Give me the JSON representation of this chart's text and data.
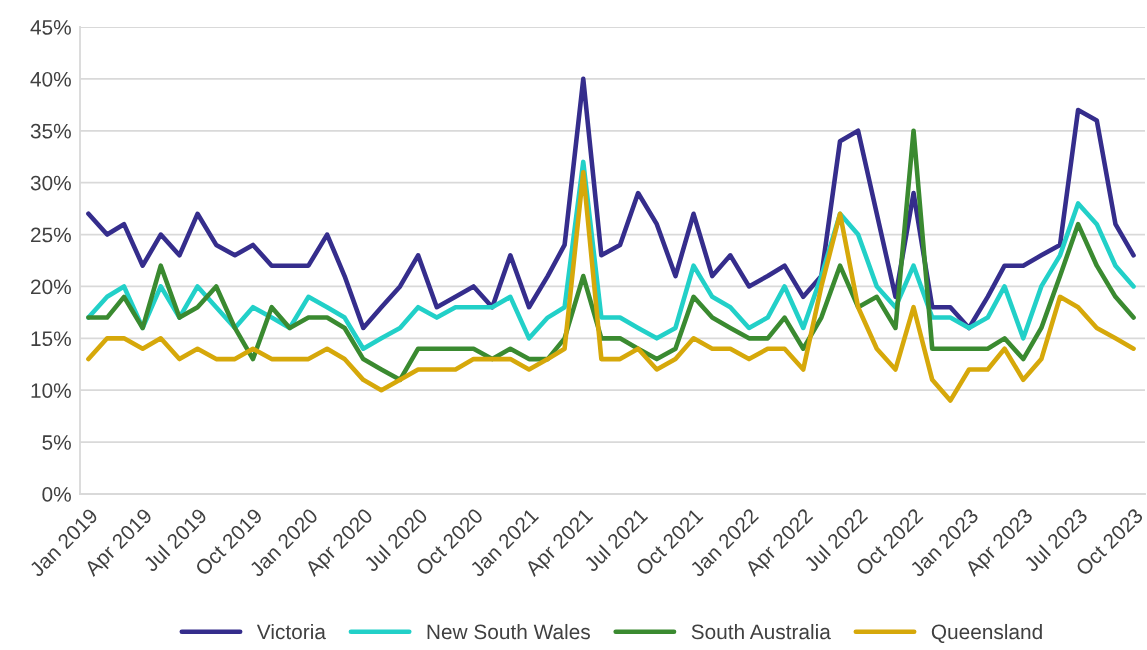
{
  "chart_data": {
    "type": "line",
    "x": [
      "2019-01",
      "2019-02",
      "2019-03",
      "2019-04",
      "2019-05",
      "2019-06",
      "2019-07",
      "2019-08",
      "2019-09",
      "2019-10",
      "2019-11",
      "2019-12",
      "2020-01",
      "2020-02",
      "2020-03",
      "2020-04",
      "2020-05",
      "2020-06",
      "2020-07",
      "2020-08",
      "2020-09",
      "2020-10",
      "2020-11",
      "2020-12",
      "2021-01",
      "2021-02",
      "2021-03",
      "2021-04",
      "2021-05",
      "2021-06",
      "2021-07",
      "2021-08",
      "2021-09",
      "2021-10",
      "2021-11",
      "2021-12",
      "2022-01",
      "2022-02",
      "2022-03",
      "2022-04",
      "2022-05",
      "2022-06",
      "2022-07",
      "2022-08",
      "2022-09",
      "2022-10",
      "2022-11",
      "2022-12",
      "2023-01",
      "2023-02",
      "2023-03",
      "2023-04",
      "2023-05",
      "2023-06",
      "2023-07",
      "2023-08",
      "2023-09",
      "2023-10"
    ],
    "series": [
      {
        "name": "Victoria",
        "color": "#352d8c",
        "values": [
          27,
          25,
          26,
          22,
          25,
          23,
          27,
          24,
          23,
          24,
          22,
          22,
          22,
          25,
          21,
          16,
          18,
          20,
          23,
          18,
          19,
          20,
          18,
          23,
          18,
          21,
          24,
          40,
          23,
          24,
          29,
          26,
          21,
          27,
          21,
          23,
          20,
          21,
          22,
          19,
          21,
          34,
          35,
          27,
          19,
          29,
          18,
          18,
          16,
          19,
          22,
          22,
          23,
          24,
          37,
          36,
          26,
          23
        ]
      },
      {
        "name": "New South Wales",
        "color": "#22d0c8",
        "values": [
          17,
          19,
          20,
          16,
          20,
          17,
          20,
          18,
          16,
          18,
          17,
          16,
          19,
          18,
          17,
          14,
          15,
          16,
          18,
          17,
          18,
          18,
          18,
          19,
          15,
          17,
          18,
          32,
          17,
          17,
          16,
          15,
          16,
          22,
          19,
          18,
          16,
          17,
          20,
          16,
          21,
          27,
          25,
          20,
          18,
          22,
          17,
          17,
          16,
          17,
          20,
          15,
          20,
          23,
          28,
          26,
          22,
          20
        ]
      },
      {
        "name": "South Australia",
        "color": "#3a8a30",
        "values": [
          17,
          17,
          19,
          16,
          22,
          17,
          18,
          20,
          16,
          13,
          18,
          16,
          17,
          17,
          16,
          13,
          12,
          11,
          14,
          14,
          14,
          14,
          13,
          14,
          13,
          13,
          15,
          21,
          15,
          15,
          14,
          13,
          14,
          19,
          17,
          16,
          15,
          15,
          17,
          14,
          17,
          22,
          18,
          19,
          16,
          35,
          14,
          14,
          14,
          14,
          15,
          13,
          16,
          21,
          26,
          22,
          19,
          17
        ]
      },
      {
        "name": "Queensland",
        "color": "#d6a80a",
        "values": [
          13,
          15,
          15,
          14,
          15,
          13,
          14,
          13,
          13,
          14,
          13,
          13,
          13,
          14,
          13,
          11,
          10,
          11,
          12,
          12,
          12,
          13,
          13,
          13,
          12,
          13,
          14,
          31,
          13,
          13,
          14,
          12,
          13,
          15,
          14,
          14,
          13,
          14,
          14,
          12,
          20,
          27,
          18,
          14,
          12,
          18,
          11,
          9,
          12,
          12,
          14,
          11,
          13,
          19,
          18,
          16,
          15,
          14
        ]
      }
    ],
    "xlim": [
      "2018-12-18",
      "2023-10-20"
    ],
    "xticks": [
      {
        "value": "2019-01",
        "label": "Jan 2019"
      },
      {
        "value": "2019-04",
        "label": "Apr 2019"
      },
      {
        "value": "2019-07",
        "label": "Jul 2019"
      },
      {
        "value": "2019-10",
        "label": "Oct 2019"
      },
      {
        "value": "2020-01",
        "label": "Jan 2020"
      },
      {
        "value": "2020-04",
        "label": "Apr 2020"
      },
      {
        "value": "2020-07",
        "label": "Jul 2020"
      },
      {
        "value": "2020-10",
        "label": "Oct 2020"
      },
      {
        "value": "2021-01",
        "label": "Jan 2021"
      },
      {
        "value": "2021-04",
        "label": "Apr 2021"
      },
      {
        "value": "2021-07",
        "label": "Jul 2021"
      },
      {
        "value": "2021-10",
        "label": "Oct 2021"
      },
      {
        "value": "2022-01",
        "label": "Jan 2022"
      },
      {
        "value": "2022-04",
        "label": "Apr 2022"
      },
      {
        "value": "2022-07",
        "label": "Jul 2022"
      },
      {
        "value": "2022-10",
        "label": "Oct 2022"
      },
      {
        "value": "2023-01",
        "label": "Jan 2023"
      },
      {
        "value": "2023-04",
        "label": "Apr 2023"
      },
      {
        "value": "2023-07",
        "label": "Jul 2023"
      },
      {
        "value": "2023-10",
        "label": "Oct 2023"
      }
    ],
    "ylim": [
      0,
      45
    ],
    "yticks": [
      {
        "value": 0,
        "label": "0%"
      },
      {
        "value": 5,
        "label": "5%"
      },
      {
        "value": 10,
        "label": "10%"
      },
      {
        "value": 15,
        "label": "15%"
      },
      {
        "value": 20,
        "label": "20%"
      },
      {
        "value": 25,
        "label": "25%"
      },
      {
        "value": 30,
        "label": "30%"
      },
      {
        "value": 35,
        "label": "35%"
      },
      {
        "value": 40,
        "label": "40%"
      },
      {
        "value": 45,
        "label": "45%"
      }
    ],
    "grid": "y",
    "legend": "bottom",
    "marker": "none",
    "line_style": "solid"
  }
}
